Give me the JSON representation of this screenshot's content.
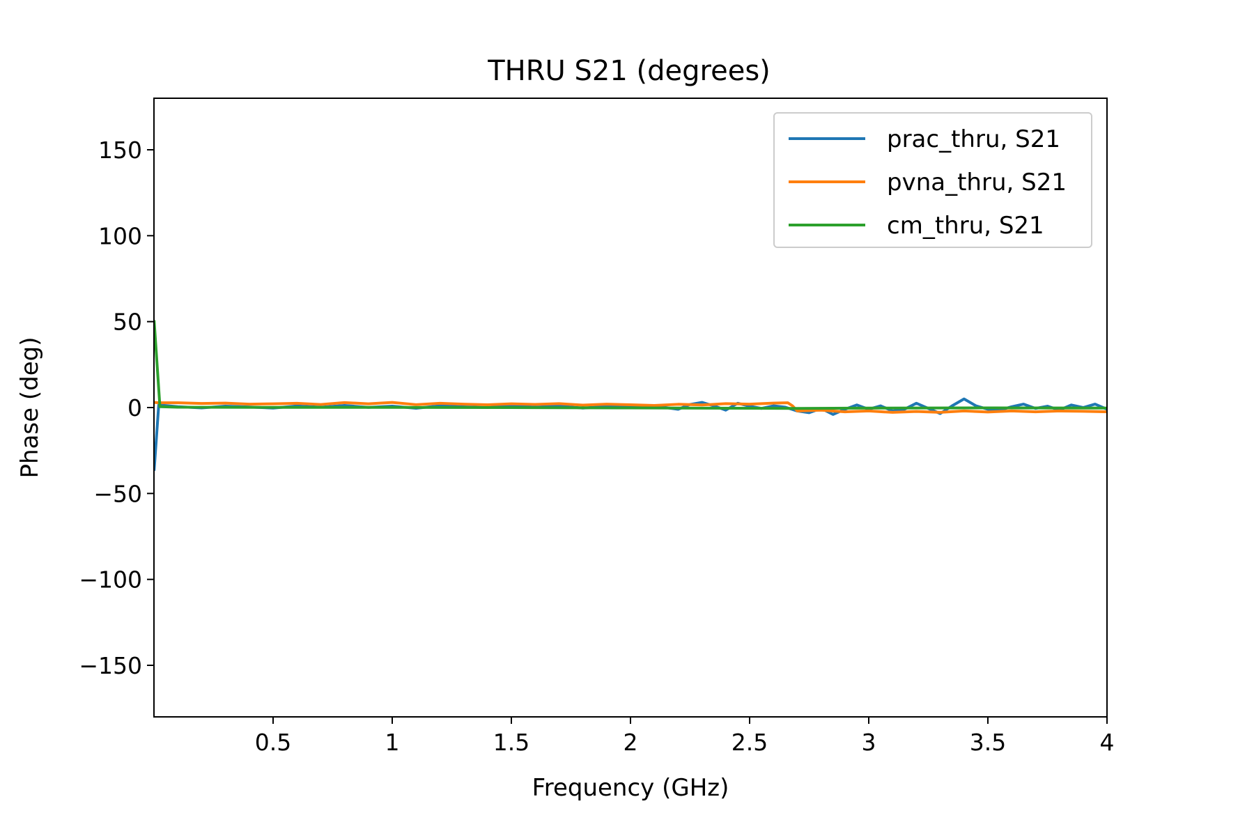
{
  "chart_data": {
    "type": "line",
    "title": "THRU S21 (degrees)",
    "xlabel": "Frequency (GHz)",
    "ylabel": "Phase (deg)",
    "xlim": [
      0,
      4
    ],
    "ylim": [
      -180,
      180
    ],
    "xticks": [
      0.5,
      1,
      1.5,
      2,
      2.5,
      3,
      3.5,
      4
    ],
    "xtick_labels": [
      "0.5",
      "1",
      "1.5",
      "2",
      "2.5",
      "3",
      "3.5",
      "4"
    ],
    "yticks": [
      150,
      100,
      50,
      0,
      -50,
      -100,
      -150
    ],
    "ytick_labels": [
      "150",
      "100",
      "50",
      "0",
      "−50",
      "−100",
      "−150"
    ],
    "grid": false,
    "legend_position": "top-right",
    "series": [
      {
        "name": "prac_thru, S21",
        "color": "#1f77b4",
        "x": [
          0.001,
          0.02,
          0.1,
          0.2,
          0.3,
          0.4,
          0.5,
          0.6,
          0.7,
          0.8,
          0.9,
          1.0,
          1.1,
          1.2,
          1.3,
          1.4,
          1.5,
          1.6,
          1.7,
          1.8,
          1.9,
          2.0,
          2.1,
          2.2,
          2.25,
          2.3,
          2.35,
          2.4,
          2.45,
          2.5,
          2.55,
          2.6,
          2.65,
          2.7,
          2.75,
          2.8,
          2.85,
          2.9,
          2.95,
          3.0,
          3.05,
          3.1,
          3.15,
          3.2,
          3.25,
          3.3,
          3.35,
          3.4,
          3.45,
          3.5,
          3.55,
          3.6,
          3.65,
          3.7,
          3.75,
          3.8,
          3.85,
          3.9,
          3.95,
          4.0
        ],
        "y": [
          -36,
          1.5,
          0.5,
          -0.2,
          0.8,
          0.3,
          -0.3,
          0.9,
          0.2,
          1.2,
          0.1,
          0.8,
          -0.4,
          1.0,
          0.4,
          0.0,
          1.1,
          0.2,
          0.9,
          -0.3,
          0.7,
          0.2,
          0.9,
          -1.0,
          1.8,
          3.0,
          1.0,
          -1.5,
          2.5,
          0.8,
          -0.5,
          1.0,
          0.2,
          -2.0,
          -3.0,
          -0.5,
          -4.0,
          -1.0,
          1.5,
          -1.0,
          1.0,
          -2.0,
          -1.0,
          2.5,
          -0.5,
          -3.5,
          1.0,
          5.0,
          1.0,
          -1.0,
          -1.5,
          0.5,
          2.0,
          -0.5,
          0.8,
          -1.5,
          1.5,
          0.0,
          2.0,
          -1.0
        ]
      },
      {
        "name": "pvna_thru, S21",
        "color": "#ff7f0e",
        "x": [
          0.001,
          0.02,
          0.1,
          0.2,
          0.3,
          0.4,
          0.5,
          0.6,
          0.7,
          0.8,
          0.9,
          1.0,
          1.1,
          1.2,
          1.3,
          1.4,
          1.5,
          1.6,
          1.7,
          1.8,
          1.9,
          2.0,
          2.1,
          2.2,
          2.3,
          2.4,
          2.5,
          2.6,
          2.66,
          2.68,
          2.7,
          2.8,
          2.9,
          3.0,
          3.1,
          3.2,
          3.3,
          3.4,
          3.5,
          3.6,
          3.7,
          3.8,
          3.9,
          4.0
        ],
        "y": [
          3.0,
          2.8,
          2.8,
          2.4,
          2.6,
          2.0,
          2.2,
          2.5,
          1.8,
          2.9,
          2.2,
          3.0,
          1.7,
          2.5,
          2.0,
          1.6,
          2.2,
          1.8,
          2.3,
          1.4,
          2.0,
          1.6,
          1.2,
          1.9,
          1.5,
          2.3,
          2.0,
          2.6,
          2.8,
          1.0,
          -2.0,
          -1.5,
          -2.5,
          -2.0,
          -2.8,
          -2.3,
          -2.8,
          -2.0,
          -2.6,
          -2.0,
          -2.5,
          -2.0,
          -2.2,
          -2.5
        ]
      },
      {
        "name": "cm_thru, S21",
        "color": "#2ca02c",
        "x": [
          0.001,
          0.025,
          0.1,
          0.5,
          1.0,
          1.5,
          2.0,
          2.5,
          2.7,
          3.0,
          3.5,
          4.0
        ],
        "y": [
          50,
          0.5,
          0.2,
          0.1,
          0.1,
          0.0,
          -0.2,
          -0.4,
          -0.5,
          -0.3,
          -0.2,
          -0.3
        ]
      }
    ]
  }
}
